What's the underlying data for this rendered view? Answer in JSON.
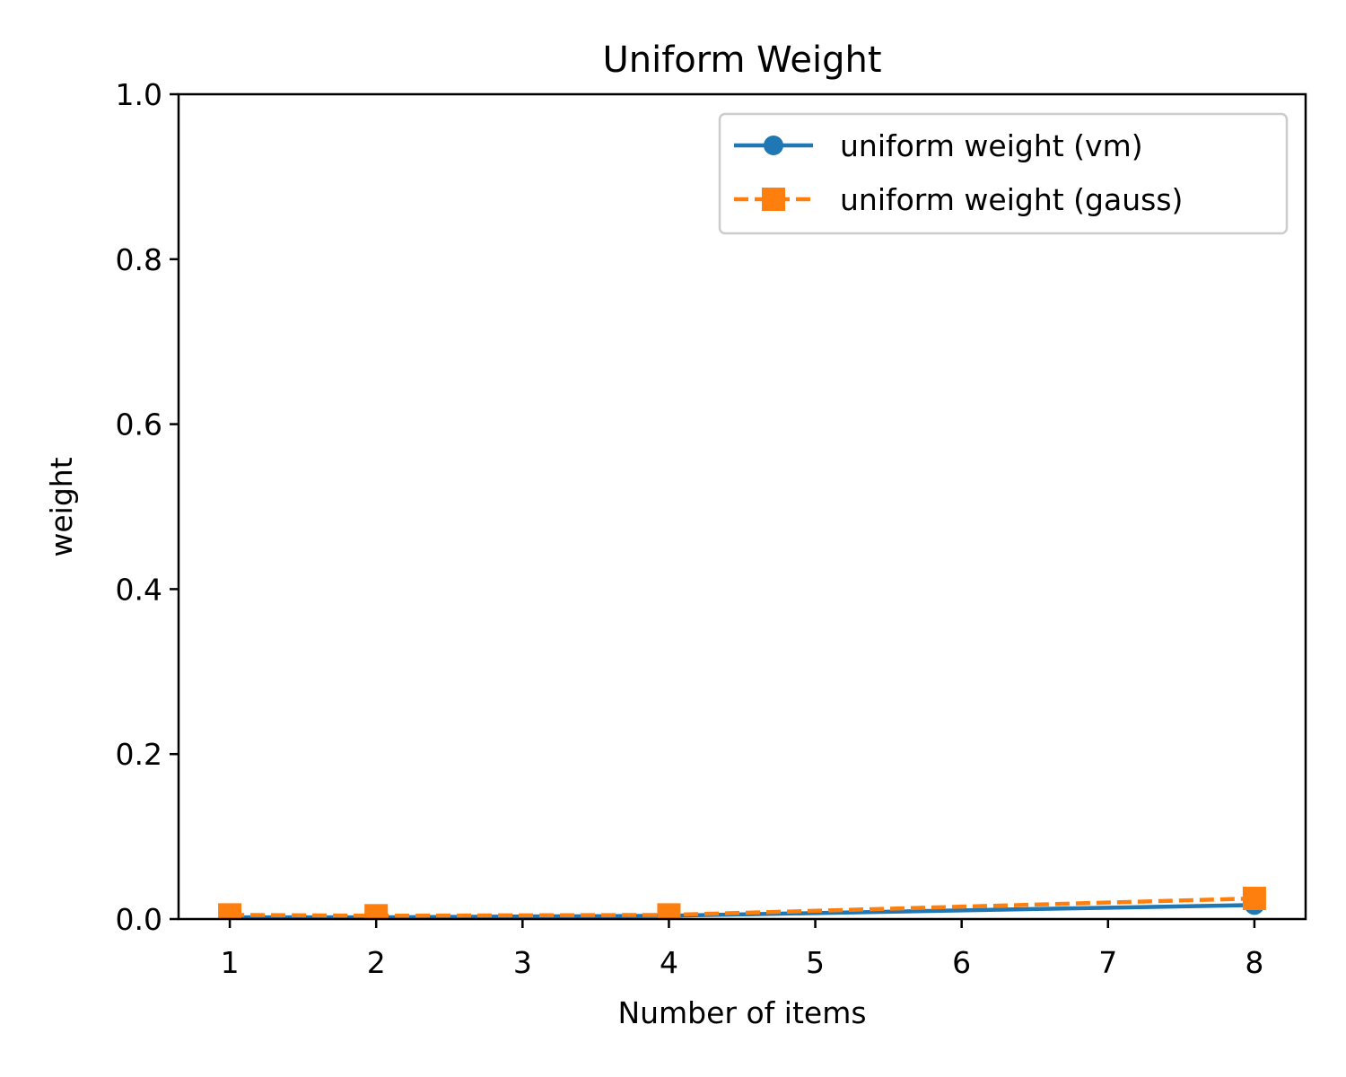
{
  "chart_data": {
    "type": "line",
    "title": "Uniform Weight",
    "xlabel": "Number of items",
    "ylabel": "weight",
    "xlim": [
      0.65,
      8.35
    ],
    "ylim": [
      0.0,
      1.0
    ],
    "xticks": [
      1,
      2,
      3,
      4,
      5,
      6,
      7,
      8
    ],
    "yticks": [
      0.0,
      0.2,
      0.4,
      0.6,
      0.8,
      1.0
    ],
    "x": [
      1,
      2,
      4,
      8
    ],
    "grid": false,
    "legend_position": "top-right",
    "series": [
      {
        "name": "uniform weight (vm)",
        "values": [
          0.002,
          0.002,
          0.004,
          0.017
        ],
        "color": "#1f77b4",
        "line_style": "solid",
        "marker": "circle"
      },
      {
        "name": "uniform weight (gauss)",
        "values": [
          0.005,
          0.004,
          0.005,
          0.025
        ],
        "color": "#ff7f0e",
        "line_style": "dashed",
        "marker": "square"
      }
    ]
  }
}
